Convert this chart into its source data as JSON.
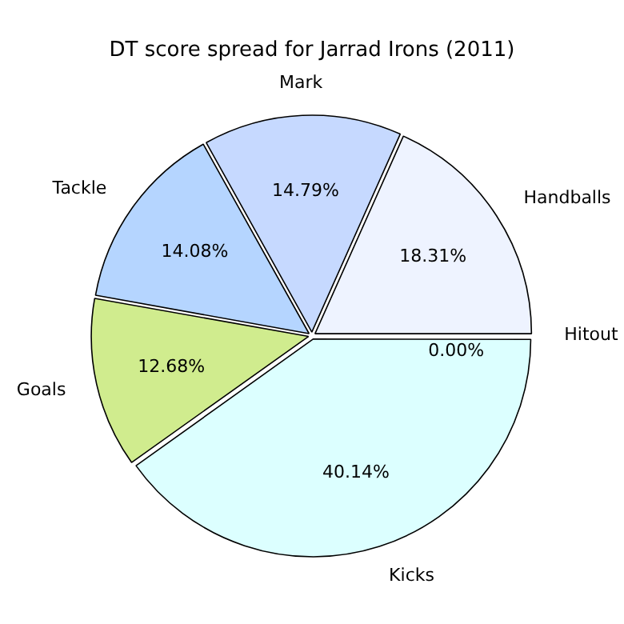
{
  "chart_data": {
    "type": "pie",
    "title": "DT score spread for Jarrad Irons (2011)",
    "categories": [
      "Hitout",
      "Kicks",
      "Goals",
      "Tackle",
      "Mark",
      "Handballs"
    ],
    "values": [
      0,
      40.14,
      12.68,
      14.08,
      14.79,
      18.31
    ],
    "colors": [
      "#eef3ff",
      "#dcffff",
      "#d0ec8e",
      "#b5d5ff",
      "#c6d9ff",
      "#eef3ff"
    ],
    "value_labels": [
      "0.00%",
      "40.14%",
      "12.68%",
      "14.08%",
      "14.79%",
      "18.31%"
    ],
    "legend": false
  }
}
